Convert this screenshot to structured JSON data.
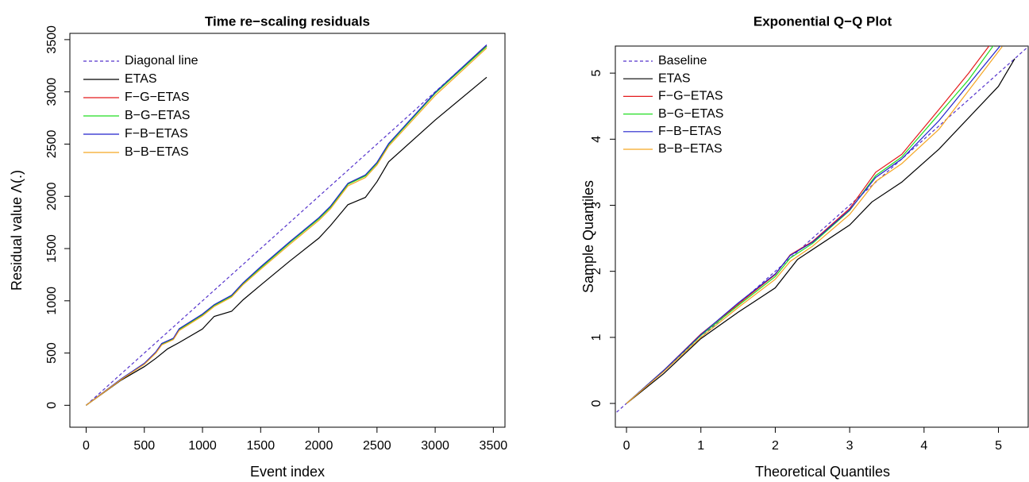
{
  "chart_data": [
    {
      "type": "line",
      "title": "Time re−scaling residuals",
      "x_label": "Event index",
      "y_label": "Residual value Λ(.)",
      "xlim": [
        -140,
        3600
      ],
      "ylim": [
        -210,
        3560
      ],
      "xticks": [
        0,
        500,
        1000,
        1500,
        2000,
        2500,
        3000,
        3500
      ],
      "yticks": [
        0,
        500,
        1000,
        1500,
        2000,
        2500,
        3000,
        3500
      ],
      "legend": "top-left",
      "series": [
        {
          "name": "Diagonal line",
          "color": "#5533cc",
          "linestyle": "dashed",
          "x": [
            0,
            3443
          ],
          "values": [
            0,
            3443
          ]
        },
        {
          "name": "ETAS",
          "color": "#000000",
          "linestyle": "solid",
          "x": [
            0,
            300,
            500,
            600,
            700,
            800,
            1000,
            1100,
            1250,
            1350,
            1500,
            1750,
            2000,
            2100,
            2250,
            2400,
            2500,
            2600,
            3000,
            3443
          ],
          "values": [
            0,
            240,
            370,
            450,
            540,
            600,
            730,
            850,
            900,
            1010,
            1150,
            1380,
            1600,
            1720,
            1920,
            1990,
            2140,
            2330,
            2730,
            3140
          ]
        },
        {
          "name": "F−G−ETAS",
          "color": "#e31a1c",
          "linestyle": "solid",
          "x": [
            0,
            300,
            500,
            600,
            650,
            750,
            800,
            1000,
            1100,
            1250,
            1350,
            1500,
            1750,
            2000,
            2100,
            2250,
            2400,
            2500,
            2600,
            3000,
            3443
          ],
          "values": [
            0,
            250,
            400,
            510,
            590,
            640,
            730,
            870,
            960,
            1050,
            1170,
            1320,
            1560,
            1790,
            1900,
            2120,
            2200,
            2320,
            2500,
            2990,
            3440
          ]
        },
        {
          "name": "B−G−ETAS",
          "color": "#22dd22",
          "linestyle": "solid",
          "x": [
            0,
            300,
            500,
            600,
            650,
            750,
            800,
            1000,
            1100,
            1250,
            1350,
            1500,
            1750,
            2000,
            2100,
            2250,
            2400,
            2500,
            2600,
            3000,
            3443
          ],
          "values": [
            0,
            248,
            398,
            505,
            585,
            636,
            725,
            865,
            955,
            1045,
            1165,
            1315,
            1555,
            1785,
            1895,
            2115,
            2195,
            2315,
            2495,
            2985,
            3435
          ]
        },
        {
          "name": "F−B−ETAS",
          "color": "#2222cc",
          "linestyle": "solid",
          "x": [
            0,
            300,
            500,
            600,
            650,
            750,
            800,
            1000,
            1100,
            1250,
            1350,
            1500,
            1750,
            2000,
            2100,
            2250,
            2400,
            2500,
            2600,
            3000,
            3443
          ],
          "values": [
            0,
            252,
            402,
            512,
            592,
            642,
            733,
            873,
            963,
            1053,
            1173,
            1325,
            1565,
            1795,
            1905,
            2125,
            2205,
            2325,
            2505,
            2995,
            3450
          ]
        },
        {
          "name": "B−B−ETAS",
          "color": "#f5a623",
          "linestyle": "solid",
          "x": [
            0,
            300,
            500,
            600,
            650,
            750,
            800,
            1000,
            1100,
            1250,
            1350,
            1500,
            1750,
            2000,
            2100,
            2250,
            2400,
            2500,
            2600,
            3000,
            3443
          ],
          "values": [
            0,
            245,
            392,
            500,
            578,
            628,
            716,
            855,
            945,
            1035,
            1155,
            1302,
            1540,
            1770,
            1880,
            2100,
            2180,
            2300,
            2480,
            2965,
            3420
          ]
        }
      ]
    },
    {
      "type": "line",
      "title": "Exponential Q−Q Plot",
      "x_label": "Theoretical Quantiles",
      "y_label": "Sample Quantiles",
      "xlim": [
        -0.15,
        5.4
      ],
      "ylim": [
        -0.36,
        5.41
      ],
      "xticks": [
        0,
        1,
        2,
        3,
        4,
        5
      ],
      "yticks": [
        0,
        1,
        2,
        3,
        4,
        5
      ],
      "legend": "top-left",
      "series": [
        {
          "name": "Baseline",
          "color": "#5533cc",
          "linestyle": "dashed",
          "x": [
            -0.3,
            5.6
          ],
          "values": [
            -0.3,
            5.6
          ]
        },
        {
          "name": "ETAS",
          "color": "#000000",
          "linestyle": "solid",
          "x": [
            0,
            0.5,
            1,
            1.5,
            2,
            2.3,
            3,
            3.3,
            3.7,
            4.2,
            5,
            5.22
          ],
          "values": [
            0,
            0.45,
            0.98,
            1.38,
            1.75,
            2.18,
            2.7,
            3.05,
            3.35,
            3.85,
            4.8,
            5.22
          ]
        },
        {
          "name": "F−G−ETAS",
          "color": "#e31a1c",
          "linestyle": "solid",
          "x": [
            0,
            0.5,
            1,
            1.5,
            2,
            2.2,
            2.5,
            3,
            3.35,
            3.7,
            4.2,
            4.6,
            5.0
          ],
          "values": [
            0,
            0.5,
            1.05,
            1.5,
            1.95,
            2.25,
            2.45,
            2.95,
            3.5,
            3.77,
            4.45,
            5.0,
            5.6
          ]
        },
        {
          "name": "B−G−ETAS",
          "color": "#22dd22",
          "linestyle": "solid",
          "x": [
            0,
            0.5,
            1,
            1.5,
            2,
            2.2,
            2.5,
            3,
            3.35,
            3.7,
            4.2,
            4.6,
            5.05
          ],
          "values": [
            0,
            0.5,
            1.03,
            1.48,
            1.92,
            2.2,
            2.42,
            2.92,
            3.45,
            3.73,
            4.38,
            4.9,
            5.6
          ]
        },
        {
          "name": "F−B−ETAS",
          "color": "#2222cc",
          "linestyle": "solid",
          "x": [
            0,
            0.5,
            1,
            1.5,
            2,
            2.2,
            2.5,
            3,
            3.35,
            3.7,
            4.2,
            5.05
          ],
          "values": [
            0,
            0.5,
            1.04,
            1.52,
            1.96,
            2.24,
            2.44,
            2.93,
            3.42,
            3.7,
            4.28,
            5.45
          ]
        },
        {
          "name": "B−B−ETAS",
          "color": "#f5a623",
          "linestyle": "solid",
          "x": [
            0,
            0.5,
            1,
            1.5,
            2,
            2.2,
            2.5,
            3,
            3.35,
            3.7,
            4.2,
            5.05
          ],
          "values": [
            0,
            0.48,
            1.0,
            1.45,
            1.88,
            2.15,
            2.38,
            2.86,
            3.36,
            3.63,
            4.15,
            5.4
          ]
        }
      ]
    }
  ]
}
